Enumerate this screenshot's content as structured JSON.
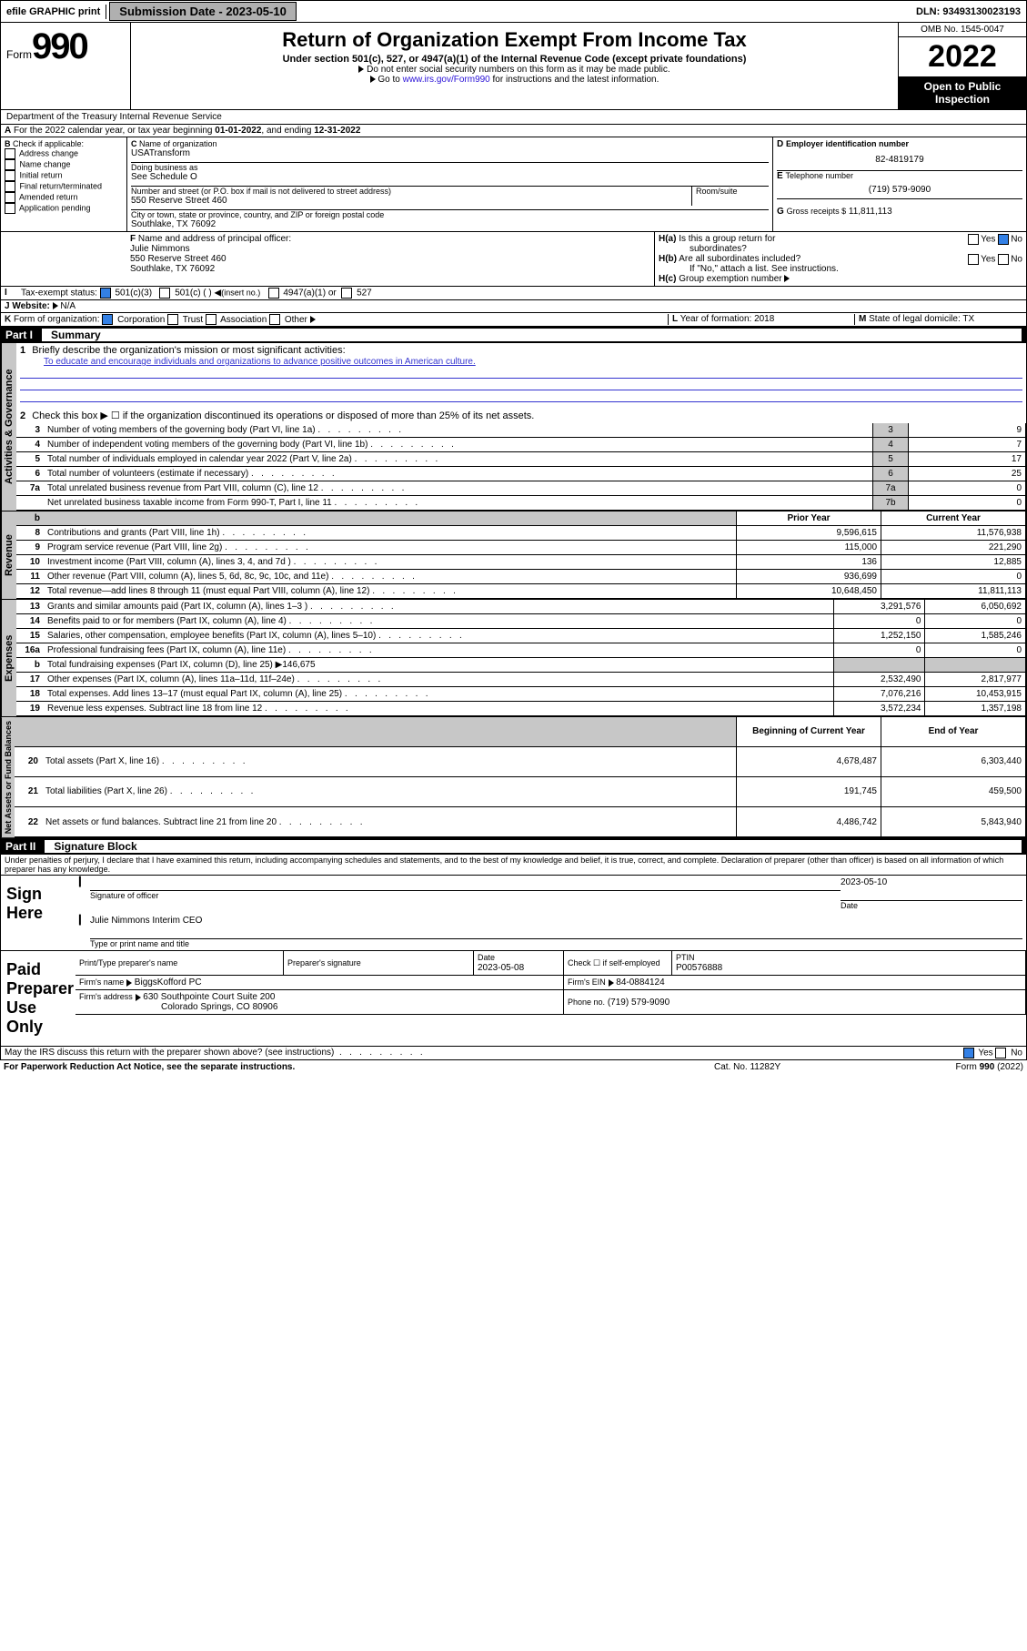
{
  "topbar": {
    "efile": "efile GRAPHIC print",
    "subdate_lbl": "Submission Date - ",
    "subdate": "2023-05-10",
    "dln_lbl": "DLN: ",
    "dln": "93493130023193"
  },
  "header": {
    "form_word": "Form",
    "form_num": "990",
    "title": "Return of Organization Exempt From Income Tax",
    "sub1": "Under section 501(c), 527, or 4947(a)(1) of the Internal Revenue Code (except private foundations)",
    "sub2": "Do not enter social security numbers on this form as it may be made public.",
    "sub3a": "Go to ",
    "sub3_link": "www.irs.gov/Form990",
    "sub3b": " for instructions and the latest information.",
    "omb": "OMB No. 1545-0047",
    "year": "2022",
    "open": "Open to Public Inspection",
    "dept": "Department of the Treasury Internal Revenue Service"
  },
  "A": {
    "text": "For the 2022 calendar year, or tax year beginning ",
    "begin": "01-01-2022",
    "mid": ", and ending ",
    "end": "12-31-2022"
  },
  "B": {
    "title": "Check if applicable:",
    "items": [
      "Address change",
      "Name change",
      "Initial return",
      "Final return/terminated",
      "Amended return",
      "Application pending"
    ]
  },
  "C": {
    "name_lbl": "Name of organization",
    "name": "USATransform",
    "dba_lbl": "Doing business as",
    "dba": "See Schedule O",
    "street_lbl": "Number and street (or P.O. box if mail is not delivered to street address)",
    "room_lbl": "Room/suite",
    "street": "550 Reserve Street 460",
    "city_lbl": "City or town, state or province, country, and ZIP or foreign postal code",
    "city": "Southlake, TX  76092"
  },
  "D": {
    "lbl": "Employer identification number",
    "val": "82-4819179"
  },
  "E": {
    "lbl": "Telephone number",
    "val": "(719) 579-9090"
  },
  "G": {
    "lbl": "Gross receipts $",
    "val": "11,811,113"
  },
  "F": {
    "lbl": "Name and address of principal officer:",
    "name": "Julie Nimmons",
    "addr1": "550 Reserve Street 460",
    "addr2": "Southlake, TX  76092"
  },
  "H": {
    "a": "Is this a group return for",
    "a2": "subordinates?",
    "a_yes": "Yes",
    "a_no": "No",
    "b": "Are all subordinates included?",
    "b2": "If \"No,\" attach a list. See instructions.",
    "c": "Group exemption number"
  },
  "I": {
    "lbl": "Tax-exempt status:",
    "opt1": "501(c)(3)",
    "opt2": "501(c) (  )",
    "insert": "(insert no.)",
    "opt3": "4947(a)(1) or",
    "opt4": "527"
  },
  "J": {
    "lbl": "Website:",
    "val": "N/A"
  },
  "K": {
    "lbl": "Form of organization:",
    "opts": [
      "Corporation",
      "Trust",
      "Association",
      "Other"
    ]
  },
  "L": {
    "lbl": "Year of formation: ",
    "val": "2018"
  },
  "M": {
    "lbl": "State of legal domicile: ",
    "val": "TX"
  },
  "part1": {
    "hdr": "Part I",
    "name": "Summary"
  },
  "p1": {
    "l1_lbl": "Briefly describe the organization's mission or most significant activities:",
    "l1_text": "To educate and encourage individuals and organizations to advance positive outcomes in American culture.",
    "l2": "Check this box ▶ ☐  if the organization discontinued its operations or disposed of more than 25% of its net assets.",
    "rows_ag": [
      {
        "n": "3",
        "t": "Number of voting members of the governing body (Part VI, line 1a)",
        "k": "3",
        "v": "9"
      },
      {
        "n": "4",
        "t": "Number of independent voting members of the governing body (Part VI, line 1b)",
        "k": "4",
        "v": "7"
      },
      {
        "n": "5",
        "t": "Total number of individuals employed in calendar year 2022 (Part V, line 2a)",
        "k": "5",
        "v": "17"
      },
      {
        "n": "6",
        "t": "Total number of volunteers (estimate if necessary)",
        "k": "6",
        "v": "25"
      },
      {
        "n": "7a",
        "t": "Total unrelated business revenue from Part VIII, column (C), line 12",
        "k": "7a",
        "v": "0"
      },
      {
        "n": "",
        "t": "Net unrelated business taxable income from Form 990-T, Part I, line 11",
        "k": "7b",
        "v": "0"
      }
    ],
    "col_prior": "Prior Year",
    "col_curr": "Current Year",
    "rev": [
      {
        "n": "8",
        "t": "Contributions and grants (Part VIII, line 1h)",
        "p": "9,596,615",
        "c": "11,576,938"
      },
      {
        "n": "9",
        "t": "Program service revenue (Part VIII, line 2g)",
        "p": "115,000",
        "c": "221,290"
      },
      {
        "n": "10",
        "t": "Investment income (Part VIII, column (A), lines 3, 4, and 7d )",
        "p": "136",
        "c": "12,885"
      },
      {
        "n": "11",
        "t": "Other revenue (Part VIII, column (A), lines 5, 6d, 8c, 9c, 10c, and 11e)",
        "p": "936,699",
        "c": "0"
      },
      {
        "n": "12",
        "t": "Total revenue—add lines 8 through 11 (must equal Part VIII, column (A), line 12)",
        "p": "10,648,450",
        "c": "11,811,113"
      }
    ],
    "exp": [
      {
        "n": "13",
        "t": "Grants and similar amounts paid (Part IX, column (A), lines 1–3 )",
        "p": "3,291,576",
        "c": "6,050,692"
      },
      {
        "n": "14",
        "t": "Benefits paid to or for members (Part IX, column (A), line 4)",
        "p": "0",
        "c": "0"
      },
      {
        "n": "15",
        "t": "Salaries, other compensation, employee benefits (Part IX, column (A), lines 5–10)",
        "p": "1,252,150",
        "c": "1,585,246"
      },
      {
        "n": "16a",
        "t": "Professional fundraising fees (Part IX, column (A), line 11e)",
        "p": "0",
        "c": "0"
      },
      {
        "n": "b",
        "t": "Total fundraising expenses (Part IX, column (D), line 25) ▶146,675",
        "p": "",
        "c": ""
      },
      {
        "n": "17",
        "t": "Other expenses (Part IX, column (A), lines 11a–11d, 11f–24e)",
        "p": "2,532,490",
        "c": "2,817,977"
      },
      {
        "n": "18",
        "t": "Total expenses. Add lines 13–17 (must equal Part IX, column (A), line 25)",
        "p": "7,076,216",
        "c": "10,453,915"
      },
      {
        "n": "19",
        "t": "Revenue less expenses. Subtract line 18 from line 12",
        "p": "3,572,234",
        "c": "1,357,198"
      }
    ],
    "col_beg": "Beginning of Current Year",
    "col_end": "End of Year",
    "na": [
      {
        "n": "20",
        "t": "Total assets (Part X, line 16)",
        "p": "4,678,487",
        "c": "6,303,440"
      },
      {
        "n": "21",
        "t": "Total liabilities (Part X, line 26)",
        "p": "191,745",
        "c": "459,500"
      },
      {
        "n": "22",
        "t": "Net assets or fund balances. Subtract line 21 from line 20",
        "p": "4,486,742",
        "c": "5,843,940"
      }
    ],
    "vlabels": {
      "ag": "Activities & Governance",
      "rev": "Revenue",
      "exp": "Expenses",
      "na": "Net Assets or Fund Balances"
    }
  },
  "part2": {
    "hdr": "Part II",
    "name": "Signature Block"
  },
  "sig": {
    "decl": "Under penalties of perjury, I declare that I have examined this return, including accompanying schedules and statements, and to the best of my knowledge and belief, it is true, correct, and complete. Declaration of preparer (other than officer) is based on all information of which preparer has any knowledge.",
    "sign_here": "Sign Here",
    "sig_officer": "Signature of officer",
    "date_lbl": "Date",
    "date": "2023-05-10",
    "officer_name": "Julie Nimmons  Interim CEO",
    "type_lbl": "Type or print name and title",
    "paid": "Paid Preparer Use Only",
    "prep_name_lbl": "Print/Type preparer's name",
    "prep_sig_lbl": "Preparer's signature",
    "prep_date_lbl": "Date",
    "prep_date": "2023-05-08",
    "check_if": "Check ☐ if self-employed",
    "ptin_lbl": "PTIN",
    "ptin": "P00576888",
    "firm_name_lbl": "Firm's name",
    "firm_name": "BiggsKofford PC",
    "firm_ein_lbl": "Firm's EIN",
    "firm_ein": "84-0884124",
    "firm_addr_lbl": "Firm's address",
    "firm_addr1": "630 Southpointe Court Suite 200",
    "firm_addr2": "Colorado Springs, CO  80906",
    "phone_lbl": "Phone no.",
    "phone": "(719) 579-9090",
    "discuss": "May the IRS discuss this return with the preparer shown above? (see instructions)",
    "yes": "Yes",
    "no": "No"
  },
  "footer": {
    "pra": "For Paperwork Reduction Act Notice, see the separate instructions.",
    "cat": "Cat. No. 11282Y",
    "form": "Form 990 (2022)"
  }
}
